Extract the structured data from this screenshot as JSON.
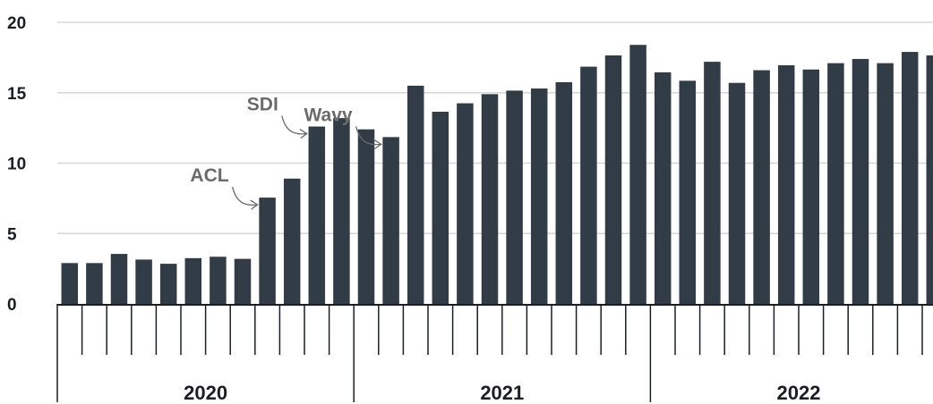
{
  "chart_data": {
    "type": "bar",
    "title": "",
    "xlabel": "",
    "ylabel": "",
    "ylim": [
      0,
      20
    ],
    "yticks": [
      "0",
      "5",
      "10",
      "15",
      "20"
    ],
    "grid": true,
    "x": [
      "2020-01",
      "2020-02",
      "2020-03",
      "2020-04",
      "2020-05",
      "2020-06",
      "2020-07",
      "2020-08",
      "2020-09",
      "2020-10",
      "2020-11",
      "2020-12",
      "2021-01",
      "2021-02",
      "2021-03",
      "2021-04",
      "2021-05",
      "2021-06",
      "2021-07",
      "2021-08",
      "2021-09",
      "2021-10",
      "2021-11",
      "2021-12",
      "2022-01",
      "2022-02",
      "2022-03",
      "2022-04",
      "2022-05",
      "2022-06",
      "2022-07",
      "2022-08",
      "2022-09",
      "2022-10",
      "2022-11",
      "2022-12"
    ],
    "values": [
      2.9,
      2.9,
      3.55,
      3.15,
      2.85,
      3.25,
      3.35,
      3.2,
      7.55,
      8.9,
      12.6,
      13.2,
      12.4,
      11.85,
      15.5,
      13.65,
      14.25,
      14.9,
      15.15,
      15.3,
      15.75,
      16.85,
      17.65,
      18.4,
      16.45,
      15.85,
      17.2,
      15.7,
      16.6,
      16.95,
      16.65,
      17.1,
      17.4,
      17.1,
      17.9,
      17.65
    ],
    "year_labels": [
      "2020",
      "2021",
      "2022"
    ],
    "annotations": [
      {
        "label": "ACL",
        "x": "2020-09"
      },
      {
        "label": "SDI",
        "x": "2020-11"
      },
      {
        "label": "Wavy",
        "x": "2021-02"
      }
    ],
    "colors": {
      "bar": "#323c46",
      "grid": "#d6d6d6",
      "axis": "#1b1f23",
      "annotation": "#6b6b6b"
    }
  }
}
